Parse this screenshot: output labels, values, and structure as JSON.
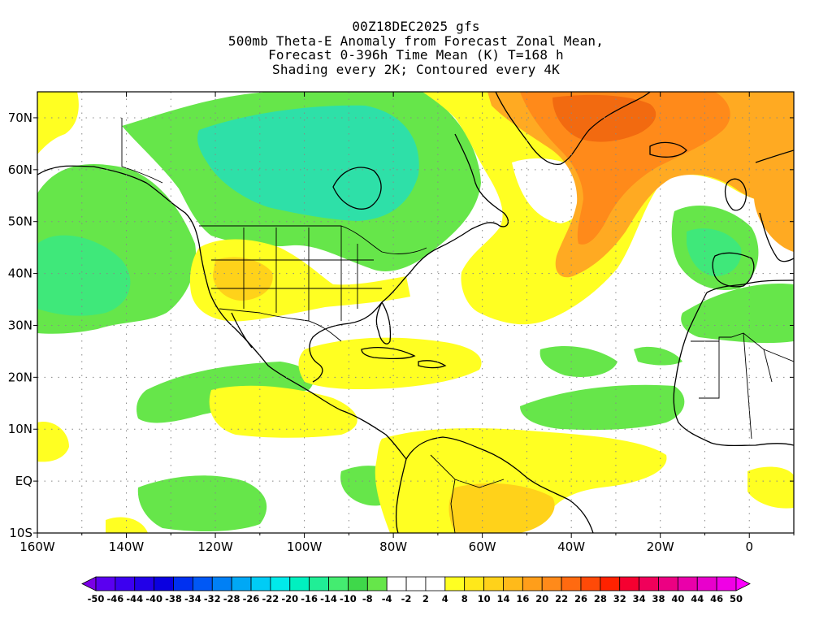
{
  "title_lines": [
    "00Z18DEC2025 gfs",
    "500mb Theta-E Anomaly from Forecast Zonal Mean,",
    "Forecast 0-396h Time Mean (K) T=168 h",
    "Shading every 2K; Contoured every 4K"
  ],
  "map": {
    "lon_range": [
      -160,
      10
    ],
    "lat_range": [
      -10,
      75
    ],
    "lon_ticks": [
      "160W",
      "140W",
      "120W",
      "100W",
      "80W",
      "60W",
      "40W",
      "20W",
      "0"
    ],
    "lat_ticks": [
      "70N",
      "60N",
      "50N",
      "40N",
      "30N",
      "20N",
      "10N",
      "EQ",
      "10S"
    ],
    "palette": {
      "green_light": "#66e64a",
      "green_mid": "#3fe87a",
      "green_cyan": "#2ee0a8",
      "yellow": "#ffff22",
      "gold": "#ffd21a",
      "orange_light": "#ffaa22",
      "orange": "#ff8a1a",
      "orange_dark": "#f26a10",
      "coast": "#000000"
    }
  },
  "colorbar": {
    "levels": [
      "-50",
      "-46",
      "-44",
      "-40",
      "-38",
      "-34",
      "-32",
      "-28",
      "-26",
      "-22",
      "-20",
      "-16",
      "-14",
      "-10",
      "-8",
      "-4",
      "-2",
      "2",
      "4",
      "8",
      "10",
      "14",
      "16",
      "20",
      "22",
      "26",
      "28",
      "32",
      "34",
      "38",
      "40",
      "44",
      "46",
      "50"
    ],
    "colors": [
      "#7a00e6",
      "#5a00f0",
      "#3c00f0",
      "#2200e8",
      "#0a00e0",
      "#0030f0",
      "#0058f5",
      "#0080f5",
      "#00a8f5",
      "#00ccf5",
      "#00eaea",
      "#00f0c0",
      "#20ee96",
      "#44ec70",
      "#3fd84a",
      "#66e64a",
      "#ffffff",
      "#ffffff",
      "#ffffff",
      "#ffff22",
      "#ffe81a",
      "#ffd21a",
      "#ffba1a",
      "#ff9e1a",
      "#ff8a1a",
      "#ff6a10",
      "#ff4a08",
      "#ff2200",
      "#f50030",
      "#f0005a",
      "#ec0082",
      "#ea00aa",
      "#e800cc",
      "#f000e6",
      "#ff00ff"
    ]
  }
}
